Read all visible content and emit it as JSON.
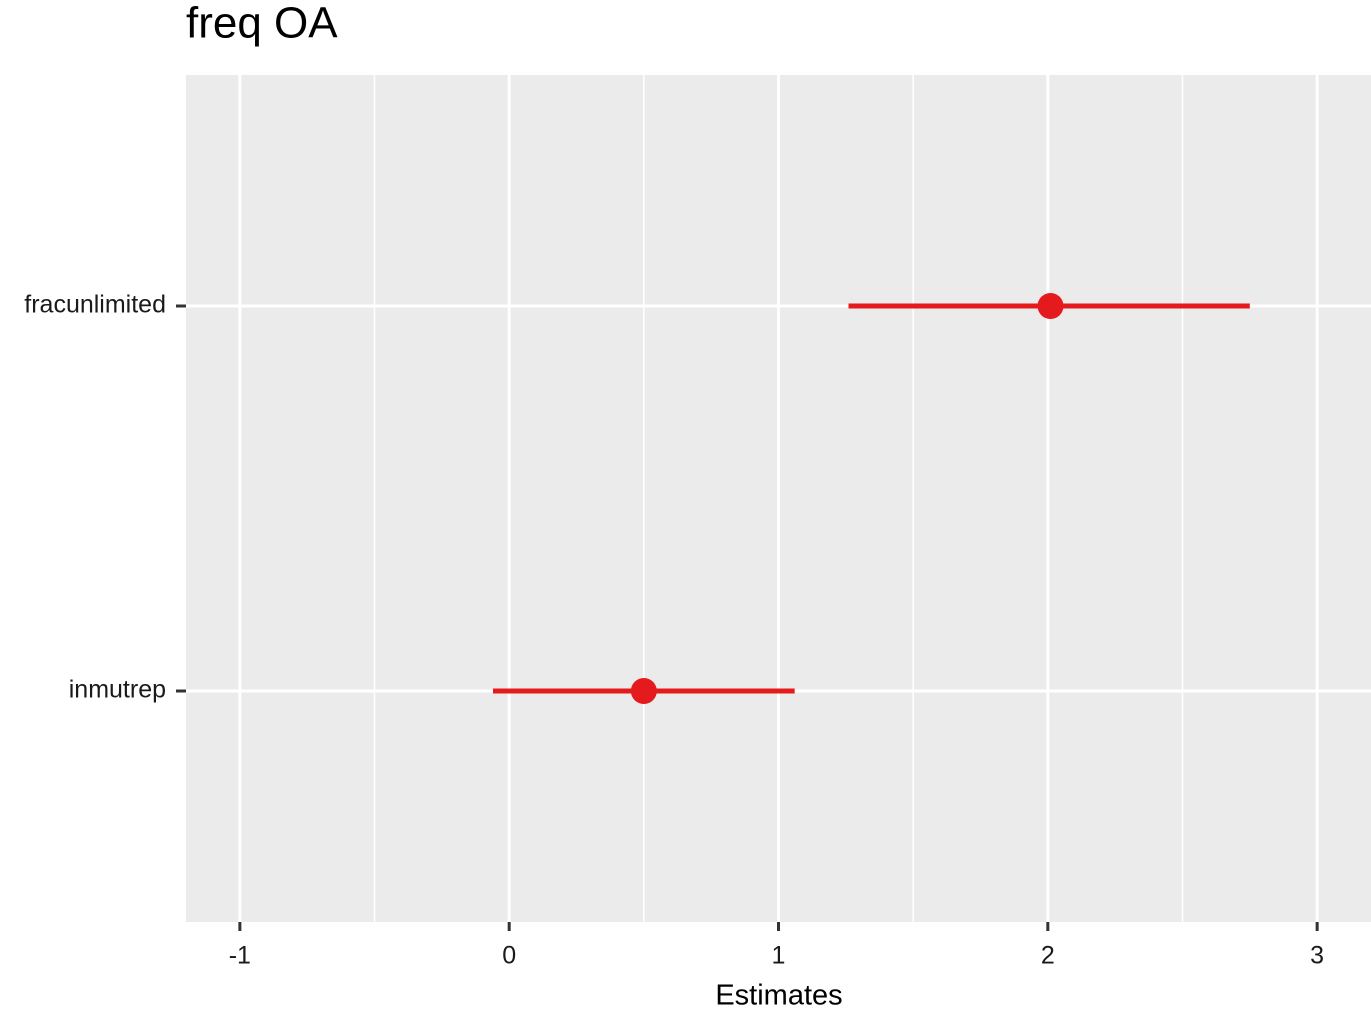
{
  "chart_data": {
    "type": "forest",
    "title": "freq OA",
    "x_label": "Estimates",
    "categories": [
      "fracunlimited",
      "inmutrep"
    ],
    "values": [
      2.01,
      0.5
    ],
    "lower": [
      1.26,
      -0.06
    ],
    "upper": [
      2.75,
      1.06
    ],
    "color": "#e41a1c",
    "xlim": [
      -1.2,
      3.2
    ],
    "xticks": [
      -1,
      0,
      1,
      2,
      3
    ],
    "x_minor_grid": [
      -0.5,
      0.5,
      1.5,
      2.5
    ],
    "grid": true
  }
}
